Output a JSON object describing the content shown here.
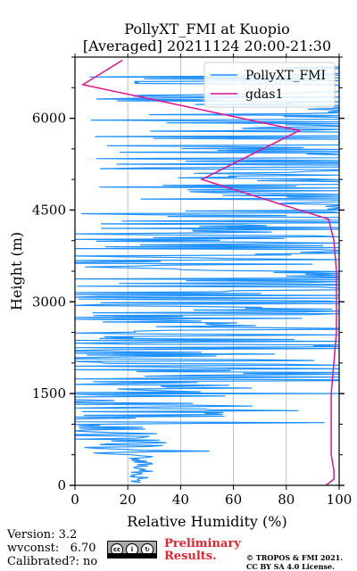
{
  "chart_data": {
    "type": "line",
    "title_line1": "PollyXT_FMI at Kuopio",
    "title_line2": "[Averaged] 20211124 20:00-21:30",
    "xlabel": "Relative Humidity (%)",
    "ylabel": "Height (m)",
    "xlim": [
      0,
      100
    ],
    "ylim": [
      0,
      7000
    ],
    "xticks": [
      "0",
      "20",
      "40",
      "60",
      "80",
      "100"
    ],
    "xtick_values": [
      0,
      20,
      40,
      60,
      80,
      100
    ],
    "yticks": [
      "0",
      "1500",
      "3000",
      "4500",
      "6000"
    ],
    "ytick_values": [
      0,
      1500,
      3000,
      4500,
      6000
    ],
    "grid": "x-vertical",
    "legend_placement": "top-right",
    "series": [
      {
        "name": "PollyXT_FMI",
        "color": "#1e90ff",
        "style": "dense-noisy-profile",
        "segments": [
          {
            "from": 50,
            "to": 500,
            "base": 25,
            "jitter": 5
          },
          {
            "from": 500,
            "to": 950,
            "base": 15,
            "jitter": 20
          },
          {
            "from": 950,
            "to": 1500,
            "base": 12,
            "jitter": 55
          },
          {
            "from": 1500,
            "to": 3000,
            "base": 50,
            "jitter": 80
          },
          {
            "from": 3000,
            "to": 4500,
            "base": 60,
            "jitter": 80
          },
          {
            "from": 4500,
            "to": 6900,
            "base": 85,
            "jitter": 80
          }
        ]
      },
      {
        "name": "gdas1",
        "color": "#e0138c",
        "points": [
          [
            95,
            0
          ],
          [
            98,
            100
          ],
          [
            98,
            250
          ],
          [
            97,
            500
          ],
          [
            97,
            1000
          ],
          [
            97,
            1500
          ],
          [
            98,
            2000
          ],
          [
            99,
            2500
          ],
          [
            99,
            3000
          ],
          [
            99,
            3500
          ],
          [
            98,
            4000
          ],
          [
            96,
            4350
          ],
          [
            48,
            5000
          ],
          [
            85,
            5800
          ],
          [
            3,
            6550
          ],
          [
            18,
            6950
          ]
        ]
      }
    ]
  },
  "footer": {
    "version": "Version: 3.2",
    "wvconst": "wvconst:   6.70",
    "calibrated": "Calibrated?: no",
    "preliminary_1": "Preliminary",
    "preliminary_2": "Results.",
    "license_1": "© TROPOS & FMI 2021.",
    "license_2": "CC BY SA 4.0 License.",
    "cc_badge_text": "BY SA"
  }
}
